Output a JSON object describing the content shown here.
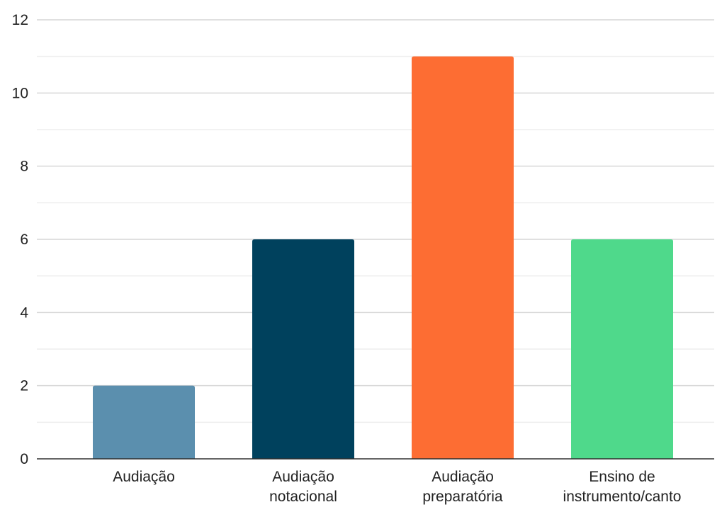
{
  "chart_data": {
    "type": "bar",
    "categories": [
      [
        "Audiação"
      ],
      [
        "Audiação",
        "notacional"
      ],
      [
        "Audiação",
        "preparatória"
      ],
      [
        "Ensino de",
        "instrumento/canto"
      ]
    ],
    "values": [
      2,
      6,
      11,
      6
    ],
    "colors": [
      "#5b8fae",
      "#00415d",
      "#fd6d33",
      "#4fd98b"
    ],
    "ylim": [
      0,
      12
    ],
    "yticks": [
      0,
      2,
      4,
      6,
      8,
      10,
      12
    ],
    "minor_gridlines": true,
    "grid": true,
    "legend": "none",
    "title": "",
    "xlabel": "",
    "ylabel": ""
  }
}
